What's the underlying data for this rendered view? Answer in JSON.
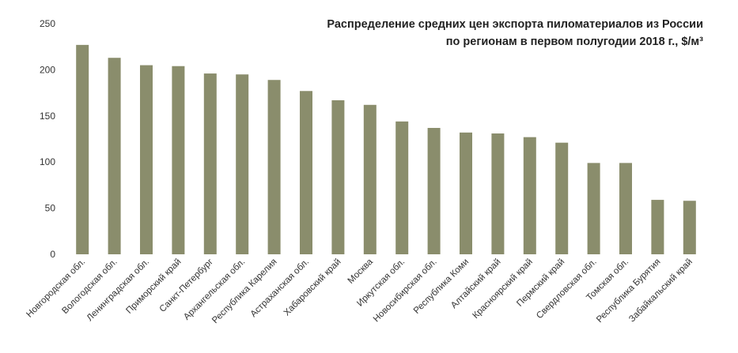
{
  "chart_data": {
    "type": "bar",
    "title_lines": [
      "Распределение средних цен экспорта пиломатериалов из России",
      "по регионам в первом полугодии 2018 г., $/м³"
    ],
    "xlabel": "",
    "ylabel": "",
    "ylim": [
      0,
      250
    ],
    "yticks": [
      0,
      50,
      100,
      150,
      200,
      250
    ],
    "grid": false,
    "legend": "none",
    "bar_color": "#8a8d6c",
    "categories": [
      "Новгородская обл.",
      "Вологодская обл.",
      "Ленинградская обл.",
      "Приморский край",
      "Санкт-Петербург",
      "Архангельская обл.",
      "Республика Карелия",
      "Астраханская обл.",
      "Хабаровский край",
      "Москва",
      "Иркутская обл.",
      "Новосибирская обл.",
      "Республика Коми",
      "Алтайский край",
      "Красноярский край",
      "Пермский край",
      "Свердловская обл.",
      "Томская обл.",
      "Республика Бурятия",
      "Забайкальский край"
    ],
    "values": [
      227,
      213,
      205,
      204,
      196,
      195,
      189,
      177,
      167,
      162,
      144,
      137,
      132,
      131,
      127,
      121,
      99,
      99,
      59,
      58
    ]
  }
}
